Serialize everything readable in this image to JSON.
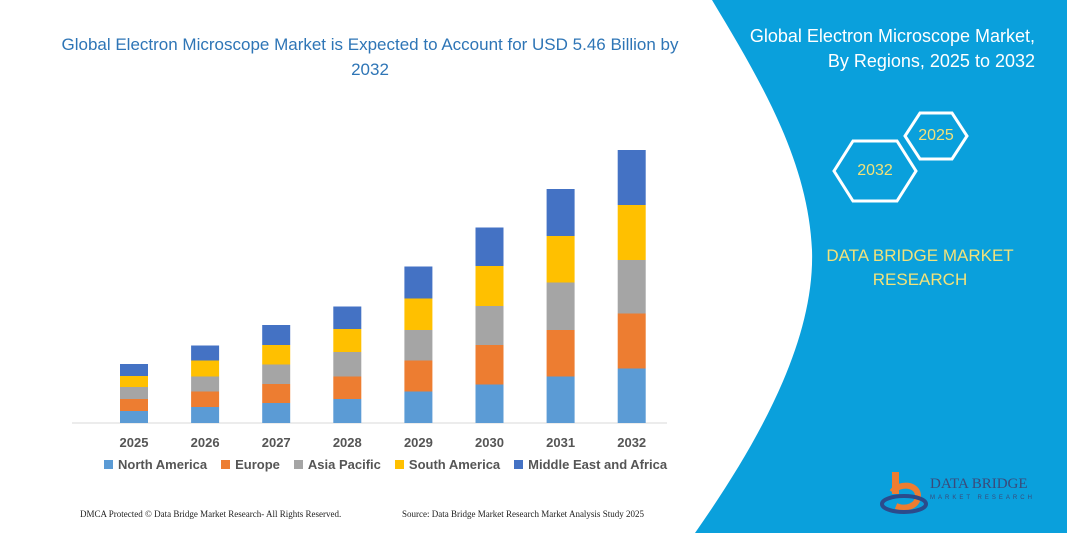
{
  "title": "Global Electron Microscope Market is Expected to Account for USD 5.46 Billion by 2032",
  "right_panel": {
    "title_line1": "Global Electron Microscope Market,",
    "title_line2": "By Regions, 2025 to 2032",
    "hex_start": "2025",
    "hex_end": "2032",
    "brand_line1": "DATA BRIDGE MARKET",
    "brand_line2": "RESEARCH",
    "logo_text": "DATA BRIDGE",
    "logo_subtext": "MARKET RESEARCH",
    "panel_color": "#0aa0dc"
  },
  "footer": {
    "left": "DMCA Protected © Data Bridge Market Research-  All Rights Reserved.",
    "right": "Source: Data Bridge Market Research  Market Analysis Study 2025"
  },
  "chart_data": {
    "type": "bar",
    "stacked": true,
    "title": "Global Electron Microscope Market is Expected to Account for USD 5.46 Billion by 2032",
    "categories": [
      "2025",
      "2026",
      "2027",
      "2028",
      "2029",
      "2030",
      "2031",
      "2032"
    ],
    "series": [
      {
        "name": "North America",
        "color": "#5b9bd5",
        "values": [
          0.24,
          0.32,
          0.4,
          0.48,
          0.63,
          0.77,
          0.93,
          1.09
        ]
      },
      {
        "name": "Europe",
        "color": "#ed7d31",
        "values": [
          0.24,
          0.31,
          0.38,
          0.45,
          0.62,
          0.79,
          0.93,
          1.1
        ]
      },
      {
        "name": "Asia Pacific",
        "color": "#a5a5a5",
        "values": [
          0.24,
          0.3,
          0.39,
          0.49,
          0.61,
          0.78,
          0.95,
          1.07
        ]
      },
      {
        "name": "South America",
        "color": "#ffc000",
        "values": [
          0.22,
          0.32,
          0.39,
          0.46,
          0.63,
          0.8,
          0.93,
          1.1
        ]
      },
      {
        "name": "Middle East and Africa",
        "color": "#4472c4",
        "values": [
          0.24,
          0.3,
          0.4,
          0.45,
          0.64,
          0.77,
          0.94,
          1.1
        ]
      }
    ],
    "xlabel": "",
    "ylabel": "",
    "ylim": [
      0,
      5.46
    ],
    "y_axis_shown": false,
    "grid": false,
    "legend": "bottom"
  }
}
